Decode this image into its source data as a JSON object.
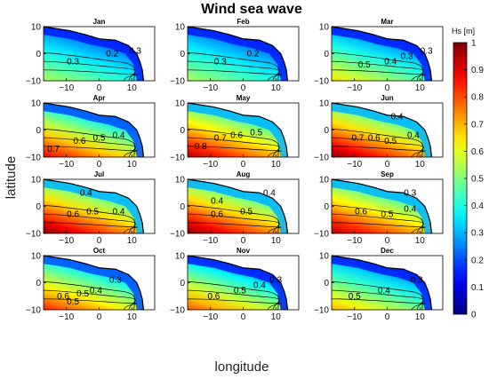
{
  "chart_data": {
    "type": "heatmap",
    "title": "Wind sea wave",
    "xlabel": "longitude",
    "ylabel": "latitude",
    "xlim": [
      -17,
      17
    ],
    "ylim": [
      -10,
      10
    ],
    "xticks": [
      -10,
      0,
      10
    ],
    "yticks": [
      -10,
      0,
      10
    ],
    "grid": false,
    "colorbar": {
      "label": "Hs [m]",
      "range": [
        0,
        1
      ],
      "ticks": [
        0,
        0.1,
        0.2,
        0.3,
        0.4,
        0.5,
        0.6,
        0.7,
        0.8,
        0.9,
        1
      ],
      "colormap": "jet"
    },
    "panels": [
      {
        "month": "Jan",
        "range": [
          0.15,
          0.55
        ],
        "labels": [
          {
            "text": "0.3",
            "x": -8,
            "y": -4
          },
          {
            "text": "0.2",
            "x": 4,
            "y": -1
          },
          {
            "text": "0.3",
            "x": 11,
            "y": 0
          }
        ]
      },
      {
        "month": "Feb",
        "range": [
          0.15,
          0.55
        ],
        "labels": [
          {
            "text": "0.3",
            "x": -7,
            "y": -4
          },
          {
            "text": "0.2",
            "x": 3,
            "y": -1
          }
        ]
      },
      {
        "month": "Mar",
        "range": [
          0.15,
          0.65
        ],
        "labels": [
          {
            "text": "0.5",
            "x": -7,
            "y": -5
          },
          {
            "text": "0.4",
            "x": 1,
            "y": -4
          },
          {
            "text": "0.3",
            "x": 6,
            "y": -2
          },
          {
            "text": "0.3",
            "x": 12,
            "y": 0
          }
        ]
      },
      {
        "month": "Apr",
        "range": [
          0.2,
          0.9
        ],
        "labels": [
          {
            "text": "0.7",
            "x": -14,
            "y": -8
          },
          {
            "text": "0.6",
            "x": -6,
            "y": -5
          },
          {
            "text": "0.5",
            "x": 0,
            "y": -4
          },
          {
            "text": "0.4",
            "x": 6,
            "y": -3
          }
        ]
      },
      {
        "month": "May",
        "range": [
          0.3,
          0.95
        ],
        "labels": [
          {
            "text": "0.8",
            "x": -13,
            "y": -7
          },
          {
            "text": "0.7",
            "x": -7,
            "y": -4
          },
          {
            "text": "0.6",
            "x": -2,
            "y": -3
          },
          {
            "text": "0.5",
            "x": 4,
            "y": -2
          }
        ]
      },
      {
        "month": "Jun",
        "range": [
          0.3,
          1.0
        ],
        "labels": [
          {
            "text": "0.4",
            "x": 3,
            "y": 4
          },
          {
            "text": "0.7",
            "x": -9,
            "y": -4
          },
          {
            "text": "0.6",
            "x": -4,
            "y": -4
          },
          {
            "text": "0.5",
            "x": 1,
            "y": -5
          },
          {
            "text": "0.4",
            "x": 8,
            "y": -3
          }
        ]
      },
      {
        "month": "Jul",
        "range": [
          0.3,
          1.0
        ],
        "labels": [
          {
            "text": "0.4",
            "x": -4,
            "y": 4
          },
          {
            "text": "0.6",
            "x": -8,
            "y": -4
          },
          {
            "text": "0.5",
            "x": -2,
            "y": -3
          },
          {
            "text": "0.4",
            "x": 6,
            "y": -3
          }
        ]
      },
      {
        "month": "Aug",
        "range": [
          0.3,
          1.0
        ],
        "labels": [
          {
            "text": "0.4",
            "x": -8,
            "y": 1
          },
          {
            "text": "0.4",
            "x": 8,
            "y": 4
          },
          {
            "text": "0.5",
            "x": 1,
            "y": -3
          },
          {
            "text": "0.6",
            "x": -8,
            "y": -4
          }
        ]
      },
      {
        "month": "Sep",
        "range": [
          0.3,
          0.95
        ],
        "labels": [
          {
            "text": "0.3",
            "x": 7,
            "y": 4
          },
          {
            "text": "0.6",
            "x": -8,
            "y": -3
          },
          {
            "text": "0.5",
            "x": 0,
            "y": -4
          },
          {
            "text": "0.4",
            "x": 7,
            "y": -2
          }
        ]
      },
      {
        "month": "Oct",
        "range": [
          0.2,
          0.85
        ],
        "labels": [
          {
            "text": "0.3",
            "x": 5,
            "y": 0
          },
          {
            "text": "0.6",
            "x": -11,
            "y": -6
          },
          {
            "text": "0.5",
            "x": -5,
            "y": -5
          },
          {
            "text": "0.4",
            "x": -1,
            "y": -4
          },
          {
            "text": "0.5",
            "x": -8,
            "y": -8
          }
        ]
      },
      {
        "month": "Nov",
        "range": [
          0.15,
          0.8
        ],
        "labels": [
          {
            "text": "0.3",
            "x": 10,
            "y": 0
          },
          {
            "text": "0.6",
            "x": -9,
            "y": -6
          },
          {
            "text": "0.5",
            "x": -1,
            "y": -4
          },
          {
            "text": "0.4",
            "x": 5,
            "y": -2
          }
        ]
      },
      {
        "month": "Dec",
        "range": [
          0.15,
          0.7
        ],
        "labels": [
          {
            "text": "0.3",
            "x": 9,
            "y": 0
          },
          {
            "text": "0.5",
            "x": -10,
            "y": -6
          },
          {
            "text": "0.4",
            "x": -1,
            "y": -4
          }
        ]
      }
    ]
  }
}
